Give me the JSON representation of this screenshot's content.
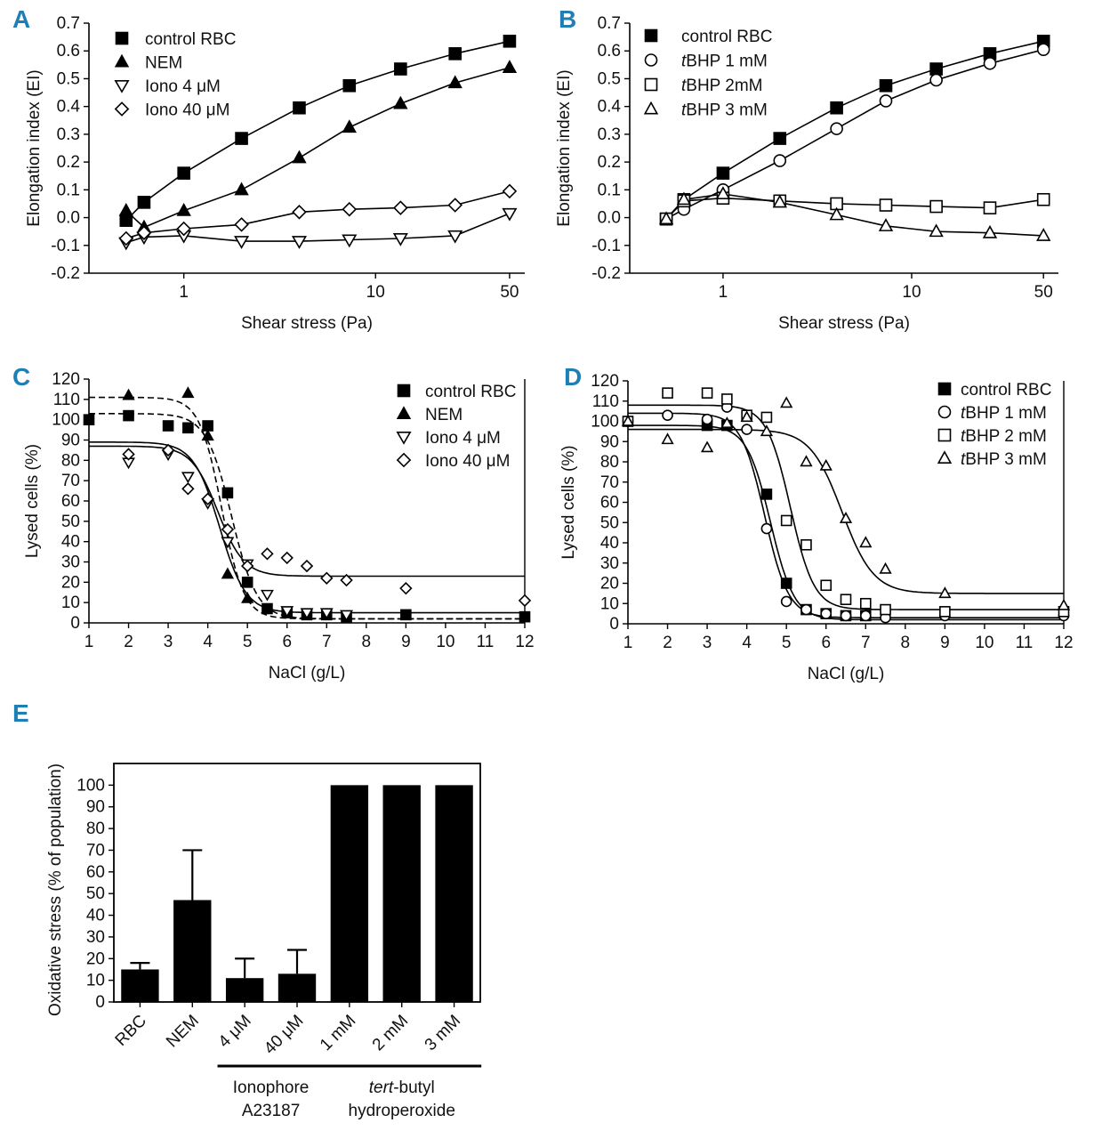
{
  "panel_labels": {
    "A": "A",
    "B": "B",
    "C": "C",
    "D": "D",
    "E": "E"
  },
  "chart_data": [
    {
      "panel": "A",
      "type": "line",
      "xlabel": "Shear stress (Pa)",
      "ylabel": "Elongation index (EI)",
      "x_scale": "log",
      "xlim": [
        0.32,
        60
      ],
      "ylim": [
        -0.2,
        0.7
      ],
      "x_ticks": [
        1,
        10,
        50
      ],
      "x_tick_labels": [
        "1",
        "10",
        "50"
      ],
      "y_ticks": [
        -0.2,
        -0.1,
        0.0,
        0.1,
        0.2,
        0.3,
        0.4,
        0.5,
        0.6,
        0.7
      ],
      "y_tick_labels": [
        "-0.2",
        "-0.1",
        "0.0",
        "0.1",
        "0.2",
        "0.3",
        "0.4",
        "0.5",
        "0.6",
        "0.7"
      ],
      "legend_position": "top-left",
      "series": [
        {
          "name": "control RBC",
          "marker": "square-filled",
          "x": [
            0.5,
            0.62,
            1.0,
            2.0,
            4.0,
            7.3,
            13.5,
            26,
            50
          ],
          "y": [
            -0.01,
            0.055,
            0.16,
            0.285,
            0.395,
            0.475,
            0.535,
            0.59,
            0.635
          ]
        },
        {
          "name": "NEM",
          "marker": "triangle-up-filled",
          "x": [
            0.5,
            0.62,
            1.0,
            2.0,
            4.0,
            7.3,
            13.5,
            26,
            50
          ],
          "y": [
            0.025,
            -0.035,
            0.025,
            0.1,
            0.215,
            0.325,
            0.41,
            0.485,
            0.54
          ]
        },
        {
          "name": "Iono 4 μM",
          "marker": "triangle-down-open",
          "x": [
            0.5,
            0.62,
            1.0,
            2.0,
            4.0,
            7.3,
            13.5,
            26,
            50
          ],
          "y": [
            -0.09,
            -0.07,
            -0.065,
            -0.085,
            -0.085,
            -0.08,
            -0.075,
            -0.065,
            0.015
          ]
        },
        {
          "name": "Iono 40 μM",
          "marker": "diamond-open",
          "x": [
            0.5,
            0.62,
            1.0,
            2.0,
            4.0,
            7.3,
            13.5,
            26,
            50
          ],
          "y": [
            -0.075,
            -0.055,
            -0.04,
            -0.025,
            0.02,
            0.03,
            0.035,
            0.045,
            0.095
          ]
        }
      ]
    },
    {
      "panel": "B",
      "type": "line",
      "xlabel": "Shear stress (Pa)",
      "ylabel": "Elongation index (EI)",
      "x_scale": "log",
      "xlim": [
        0.32,
        60
      ],
      "ylim": [
        -0.2,
        0.7
      ],
      "x_ticks": [
        1,
        10,
        50
      ],
      "x_tick_labels": [
        "1",
        "10",
        "50"
      ],
      "y_ticks": [
        -0.2,
        -0.1,
        0.0,
        0.1,
        0.2,
        0.3,
        0.4,
        0.5,
        0.6,
        0.7
      ],
      "y_tick_labels": [
        "-0.2",
        "-0.1",
        "0.0",
        "0.1",
        "0.2",
        "0.3",
        "0.4",
        "0.5",
        "0.6",
        "0.7"
      ],
      "legend_position": "top-left",
      "series": [
        {
          "name": "control RBC",
          "marker": "square-filled",
          "x": [
            0.5,
            0.62,
            1.0,
            2.0,
            4.0,
            7.3,
            13.5,
            26,
            50
          ],
          "y": [
            -0.005,
            0.065,
            0.16,
            0.285,
            0.395,
            0.475,
            0.535,
            0.59,
            0.635
          ]
        },
        {
          "name": "tBHP 1 mM",
          "italic_prefix": "t",
          "marker": "circle-open",
          "x": [
            0.5,
            0.62,
            1.0,
            2.0,
            4.0,
            7.3,
            13.5,
            26,
            50
          ],
          "y": [
            -0.005,
            0.03,
            0.1,
            0.205,
            0.32,
            0.42,
            0.495,
            0.555,
            0.605
          ]
        },
        {
          "name": "tBHP 2mM",
          "italic_prefix": "t",
          "marker": "square-open",
          "x": [
            0.5,
            0.62,
            1.0,
            2.0,
            4.0,
            7.3,
            13.5,
            26,
            50
          ],
          "y": [
            -0.005,
            0.06,
            0.07,
            0.06,
            0.05,
            0.045,
            0.04,
            0.035,
            0.065
          ]
        },
        {
          "name": "tBHP 3 mM",
          "italic_prefix": "t",
          "marker": "triangle-up-open",
          "x": [
            0.5,
            0.62,
            1.0,
            2.0,
            4.0,
            7.3,
            13.5,
            26,
            50
          ],
          "y": [
            -0.005,
            0.065,
            0.085,
            0.055,
            0.01,
            -0.03,
            -0.05,
            -0.055,
            -0.065
          ]
        }
      ]
    },
    {
      "panel": "C",
      "type": "scatter",
      "xlabel": "NaCl (g/L)",
      "ylabel": "Lysed cells (%)",
      "xlim": [
        1,
        12
      ],
      "ylim": [
        0,
        120
      ],
      "x_ticks": [
        1,
        2,
        3,
        4,
        5,
        6,
        7,
        8,
        9,
        10,
        11,
        12
      ],
      "x_tick_labels": [
        "1",
        "2",
        "3",
        "4",
        "5",
        "6",
        "7",
        "8",
        "9",
        "10",
        "11",
        "12"
      ],
      "y_ticks": [
        0,
        10,
        20,
        30,
        40,
        50,
        60,
        70,
        80,
        90,
        100,
        110,
        120
      ],
      "y_tick_labels": [
        "0",
        "10",
        "20",
        "30",
        "40",
        "50",
        "60",
        "70",
        "80",
        "90",
        "100",
        "110",
        "120"
      ],
      "legend_position": "top-right",
      "series": [
        {
          "name": "control RBC",
          "marker": "square-filled",
          "fit": "dashed",
          "fit_params": {
            "top": 103,
            "bottom": 2,
            "x50": 4.6,
            "slope": 0.32
          },
          "x": [
            1,
            2,
            3,
            3.5,
            4,
            4.5,
            5,
            5.5,
            6,
            6.5,
            7,
            7.5,
            9,
            12
          ],
          "y": [
            100,
            102,
            97,
            96,
            97,
            64,
            20,
            7,
            5,
            4,
            4,
            3,
            4,
            3
          ]
        },
        {
          "name": "NEM",
          "marker": "triangle-up-filled",
          "fit": "dashed",
          "fit_params": {
            "top": 111,
            "bottom": 2,
            "x50": 4.35,
            "slope": 0.28
          },
          "x": [
            2,
            3.5,
            4,
            4.5,
            5
          ],
          "y": [
            112,
            113,
            92,
            24,
            12
          ]
        },
        {
          "name": "Iono 4 μM",
          "marker": "triangle-down-open",
          "fit": "solid",
          "fit_params": {
            "top": 89,
            "bottom": 5,
            "x50": 4.3,
            "slope": 0.33
          },
          "x": [
            2,
            3,
            3.5,
            4,
            4.5,
            5,
            5.5,
            6,
            6.5,
            7,
            7.5
          ],
          "y": [
            79,
            83,
            72,
            59,
            40,
            29,
            14,
            6,
            5,
            5,
            4
          ]
        },
        {
          "name": "Iono 40 μM",
          "marker": "diamond-open",
          "fit": "solid",
          "fit_params": {
            "top": 87,
            "bottom": 23,
            "x50": 4.25,
            "slope": 0.33
          },
          "x": [
            2,
            3,
            3.5,
            4,
            4.5,
            5,
            5.5,
            6,
            6.5,
            7,
            7.5,
            9,
            12
          ],
          "y": [
            83,
            85,
            66,
            61,
            46,
            28,
            34,
            32,
            28,
            22,
            21,
            17,
            11
          ]
        }
      ]
    },
    {
      "panel": "D",
      "type": "scatter",
      "xlabel": "NaCl (g/L)",
      "ylabel": "Lysed cells (%)",
      "xlim": [
        1,
        12
      ],
      "ylim": [
        0,
        120
      ],
      "x_ticks": [
        1,
        2,
        3,
        4,
        5,
        6,
        7,
        8,
        9,
        10,
        11,
        12
      ],
      "x_tick_labels": [
        "1",
        "2",
        "3",
        "4",
        "5",
        "6",
        "7",
        "8",
        "9",
        "10",
        "11",
        "12"
      ],
      "y_ticks": [
        0,
        10,
        20,
        30,
        40,
        50,
        60,
        70,
        80,
        90,
        100,
        110,
        120
      ],
      "y_tick_labels": [
        "0",
        "10",
        "20",
        "30",
        "40",
        "50",
        "60",
        "70",
        "80",
        "90",
        "100",
        "110",
        "120"
      ],
      "legend_position": "top-right",
      "series": [
        {
          "name": "control RBC",
          "marker": "square-filled",
          "fit": "solid",
          "fit_params": {
            "top": 98,
            "bottom": 2,
            "x50": 4.6,
            "slope": 0.3
          },
          "x": [
            3,
            3.5,
            4.5,
            5,
            5.5,
            6,
            6.5,
            7
          ],
          "y": [
            98,
            98,
            64,
            20,
            7,
            5,
            4,
            4
          ]
        },
        {
          "name": "tBHP 1 mM",
          "italic_prefix": "t",
          "marker": "circle-open",
          "fit": "solid",
          "fit_params": {
            "top": 104,
            "bottom": 3,
            "x50": 4.45,
            "slope": 0.3
          },
          "x": [
            1,
            2,
            3,
            3.5,
            4,
            4.5,
            5,
            5.5,
            6,
            6.5,
            7,
            7.5,
            9,
            12
          ],
          "y": [
            100,
            103,
            101,
            107,
            96,
            47,
            11,
            7,
            5,
            4,
            4,
            3,
            4,
            4
          ]
        },
        {
          "name": "tBHP 2 mM",
          "italic_prefix": "t",
          "marker": "square-open",
          "fit": "solid",
          "fit_params": {
            "top": 108,
            "bottom": 7,
            "x50": 5.1,
            "slope": 0.3
          },
          "x": [
            1,
            2,
            3,
            3.5,
            4,
            4.5,
            5,
            5.5,
            6,
            6.5,
            7,
            7.5,
            9,
            12
          ],
          "y": [
            100,
            114,
            114,
            111,
            103,
            102,
            51,
            39,
            19,
            12,
            10,
            7,
            6,
            6
          ]
        },
        {
          "name": "tBHP 3 mM",
          "italic_prefix": "t",
          "marker": "triangle-up-open",
          "fit": "solid",
          "fit_params": {
            "top": 96,
            "bottom": 15,
            "x50": 6.4,
            "slope": 0.4
          },
          "x": [
            1,
            2,
            3,
            3.5,
            4,
            4.5,
            5,
            5.5,
            6,
            6.5,
            7,
            7.5,
            9,
            12
          ],
          "y": [
            100,
            91,
            87,
            99,
            102,
            95,
            109,
            80,
            78,
            52,
            40,
            27,
            15,
            9
          ]
        }
      ]
    },
    {
      "panel": "E",
      "type": "bar",
      "ylabel": "Oxidative stress (% of population)",
      "ylim": [
        0,
        110
      ],
      "y_ticks": [
        0,
        10,
        20,
        30,
        40,
        50,
        60,
        70,
        80,
        90,
        100
      ],
      "y_tick_labels": [
        "0",
        "10",
        "20",
        "30",
        "40",
        "50",
        "60",
        "70",
        "80",
        "90",
        "100"
      ],
      "categories": [
        "RBC",
        "NEM",
        "4 μM",
        "40 μM",
        "1 mM",
        "2 mM",
        "3 mM"
      ],
      "values": [
        15,
        47,
        11,
        13,
        100,
        100,
        100
      ],
      "errors": [
        3,
        23,
        9,
        11,
        0,
        0,
        0
      ],
      "bar_color": "#000000",
      "groups": [
        {
          "label_lines": [
            "Ionophore",
            "A23187"
          ],
          "members": [
            2,
            3
          ]
        },
        {
          "label_lines": [
            "tert-butyl",
            "hydroperoxide"
          ],
          "italic_prefix": "tert",
          "members": [
            4,
            5,
            6
          ]
        }
      ]
    }
  ]
}
